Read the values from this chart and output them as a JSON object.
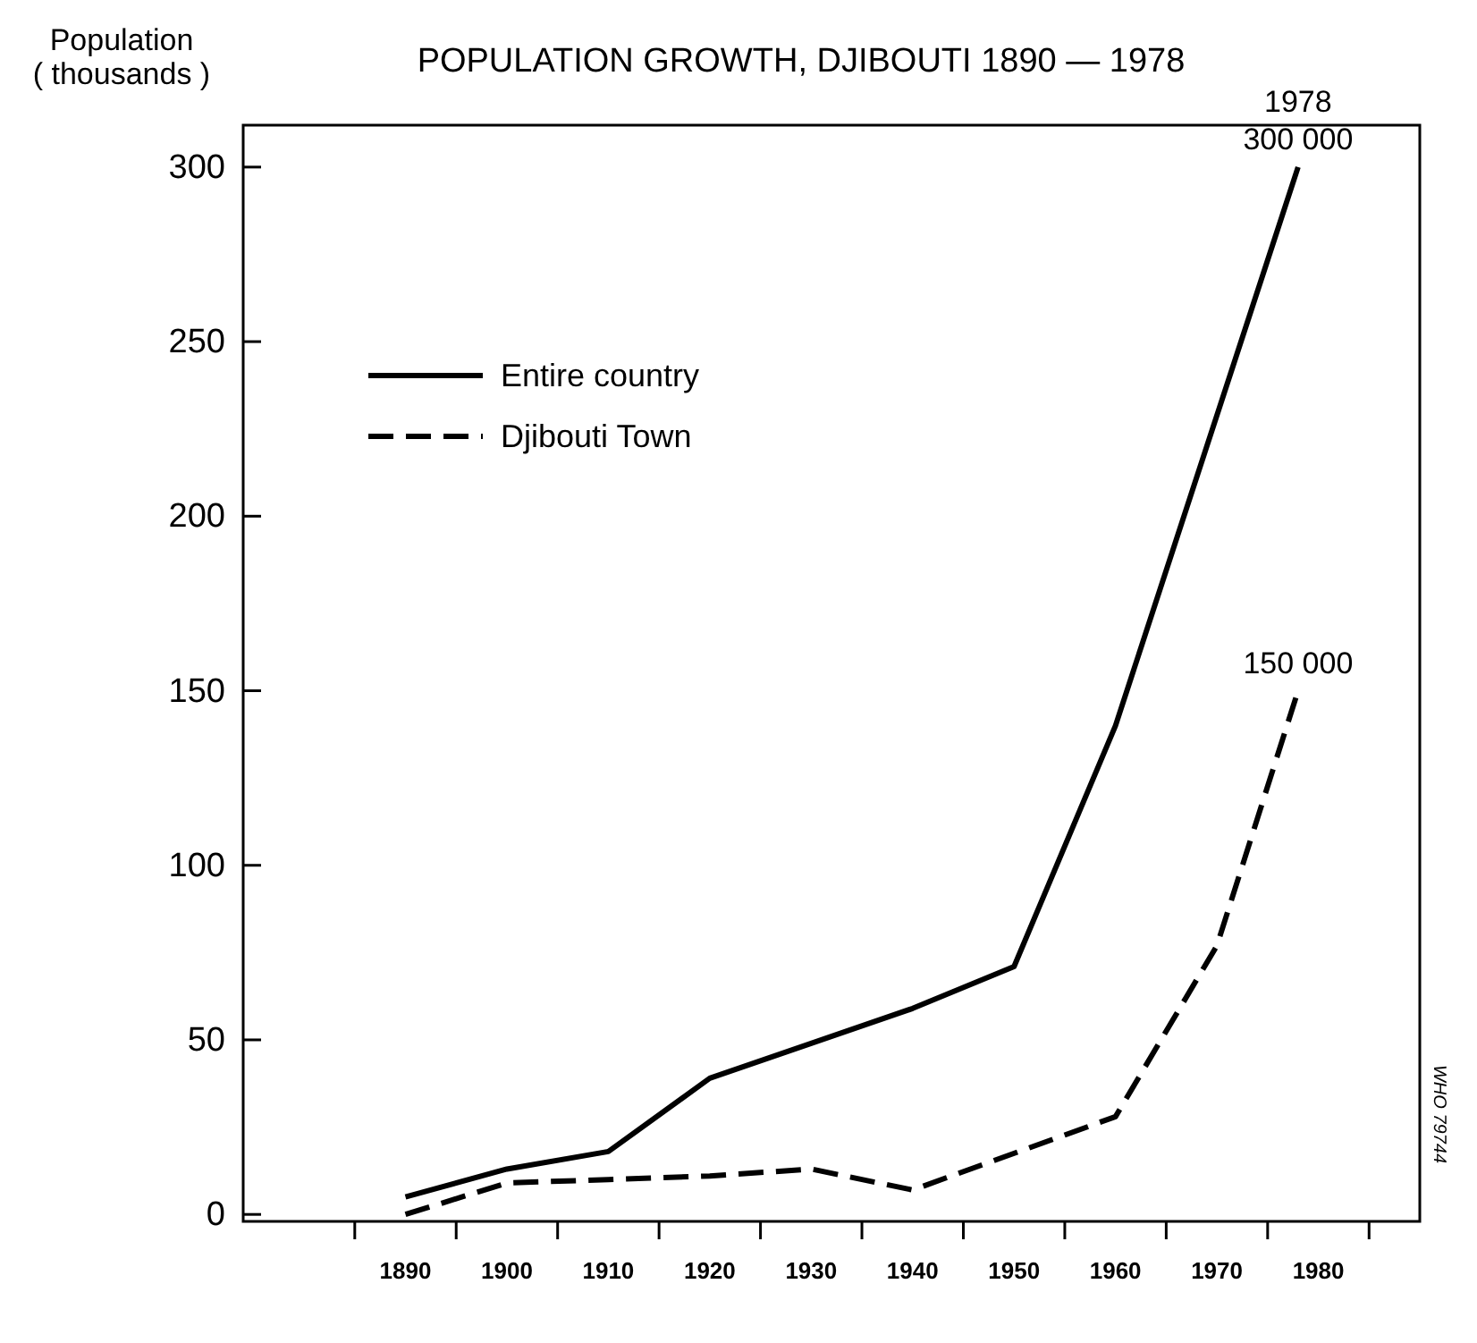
{
  "chart_data": {
    "type": "line",
    "title": "POPULATION GROWTH, DJIBOUTI 1890 — 1978",
    "ylabel": "Population\n( thousands )",
    "x": [
      1890,
      1900,
      1910,
      1920,
      1930,
      1940,
      1950,
      1960,
      1978
    ],
    "series": [
      {
        "name": "Entire country",
        "color": "#000000",
        "line_style": "solid",
        "values": [
          5,
          13,
          18,
          39,
          49,
          59,
          71,
          140,
          300
        ]
      },
      {
        "name": "Djibouti Town",
        "color": "#000000",
        "line_style": "dashed",
        "x": [
          1890,
          1900,
          1910,
          1920,
          1930,
          1940,
          1960,
          1970,
          1978
        ],
        "values": [
          0,
          9,
          10,
          11,
          13,
          7,
          28,
          77,
          150
        ]
      }
    ],
    "xlim": [
      1874,
      1990
    ],
    "xticks": [
      {
        "value": 1885,
        "label": null
      },
      1890,
      {
        "value": 1895,
        "label": null
      },
      1900,
      {
        "value": 1905,
        "label": null
      },
      1910,
      {
        "value": 1915,
        "label": null
      },
      1920,
      {
        "value": 1925,
        "label": null
      },
      1930,
      {
        "value": 1935,
        "label": null
      },
      1940,
      {
        "value": 1945,
        "label": null
      },
      1950,
      {
        "value": 1955,
        "label": null
      },
      1960,
      {
        "value": 1965,
        "label": null
      },
      1970,
      {
        "value": 1975,
        "label": null
      },
      1980,
      {
        "value": 1985,
        "label": null
      }
    ],
    "ylim": [
      -2,
      312
    ],
    "yticks": [
      0,
      50,
      100,
      150,
      200,
      250,
      300
    ],
    "grid": false,
    "legend": "top left",
    "marker": "none",
    "annotations": [
      {
        "text": "1978\n300 000",
        "x": 1978,
        "y": 300
      },
      {
        "text": "150 000",
        "x": 1978,
        "y": 150
      },
      "WHO 79744"
    ]
  }
}
